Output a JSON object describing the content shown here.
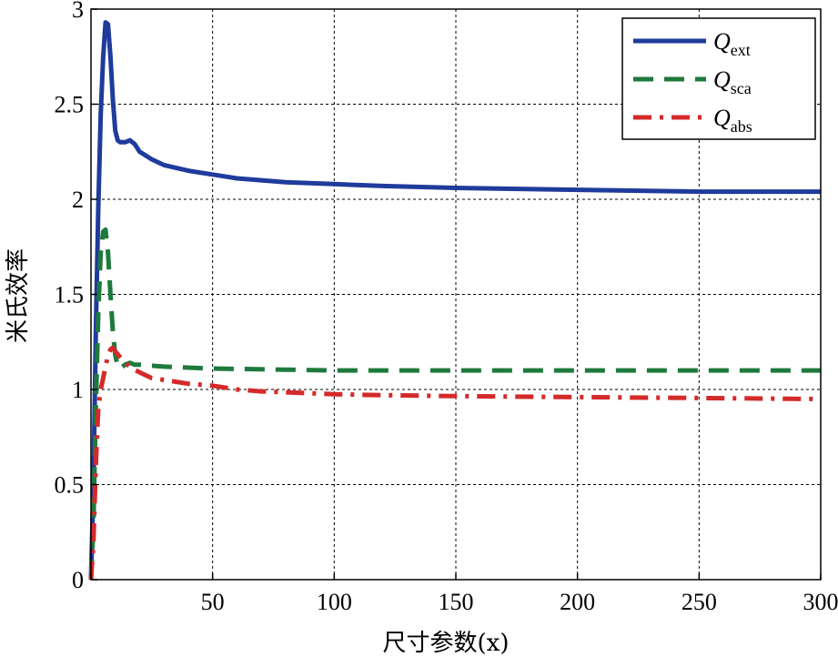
{
  "chart_data": {
    "type": "line",
    "title": "",
    "xlabel": "尺寸参数(x)",
    "ylabel": "米氏效率",
    "xlim": [
      0,
      300
    ],
    "ylim": [
      0,
      3
    ],
    "xticks": [
      0,
      50,
      100,
      150,
      200,
      250,
      300
    ],
    "xtick_labels": [
      "",
      "50",
      "100",
      "150",
      "200",
      "250",
      "300"
    ],
    "yticks": [
      0,
      0.5,
      1,
      1.5,
      2,
      2.5,
      3
    ],
    "ytick_labels": [
      "0",
      "0.5",
      "1",
      "1.5",
      "2",
      "2.5",
      "3"
    ],
    "grid": true,
    "legend_position": "top-right",
    "series": [
      {
        "name": "Q_ext",
        "legend_main": "Q",
        "legend_sub": "ext",
        "color": "#1f3b9c",
        "style": "solid",
        "x": [
          0,
          1,
          2,
          3,
          4,
          5,
          6,
          7,
          8,
          9,
          10,
          11,
          12,
          14,
          16,
          18,
          20,
          25,
          30,
          40,
          50,
          60,
          70,
          80,
          100,
          120,
          150,
          200,
          250,
          300
        ],
        "y": [
          0,
          0.5,
          1.3,
          1.95,
          2.45,
          2.75,
          2.93,
          2.92,
          2.75,
          2.52,
          2.36,
          2.31,
          2.3,
          2.3,
          2.31,
          2.29,
          2.25,
          2.21,
          2.18,
          2.15,
          2.13,
          2.11,
          2.1,
          2.09,
          2.08,
          2.07,
          2.06,
          2.05,
          2.04,
          2.04
        ]
      },
      {
        "name": "Q_sca",
        "legend_main": "Q",
        "legend_sub": "sca",
        "color": "#1e7a3c",
        "style": "dashed",
        "x": [
          0,
          1,
          2,
          3,
          4,
          5,
          6,
          7,
          8,
          9,
          10,
          11,
          12,
          14,
          16,
          18,
          20,
          30,
          50,
          100,
          150,
          200,
          300
        ],
        "y": [
          0,
          0.3,
          0.9,
          1.4,
          1.72,
          1.83,
          1.84,
          1.72,
          1.5,
          1.3,
          1.18,
          1.12,
          1.11,
          1.13,
          1.14,
          1.13,
          1.13,
          1.12,
          1.11,
          1.1,
          1.1,
          1.1,
          1.1
        ]
      },
      {
        "name": "Q_abs",
        "legend_main": "Q",
        "legend_sub": "abs",
        "color": "#d42a2a",
        "style": "dashdot",
        "x": [
          0,
          1,
          2,
          3,
          4,
          5,
          6,
          7,
          8,
          9,
          10,
          12,
          14,
          17,
          20,
          25,
          30,
          40,
          50,
          60,
          70,
          80,
          100,
          120,
          150,
          200,
          250,
          300
        ],
        "y": [
          0,
          0.2,
          0.6,
          0.9,
          1.0,
          1.06,
          1.12,
          1.18,
          1.21,
          1.22,
          1.2,
          1.17,
          1.14,
          1.11,
          1.09,
          1.06,
          1.05,
          1.03,
          1.02,
          1.0,
          0.99,
          0.985,
          0.975,
          0.97,
          0.965,
          0.96,
          0.955,
          0.95
        ]
      }
    ]
  }
}
